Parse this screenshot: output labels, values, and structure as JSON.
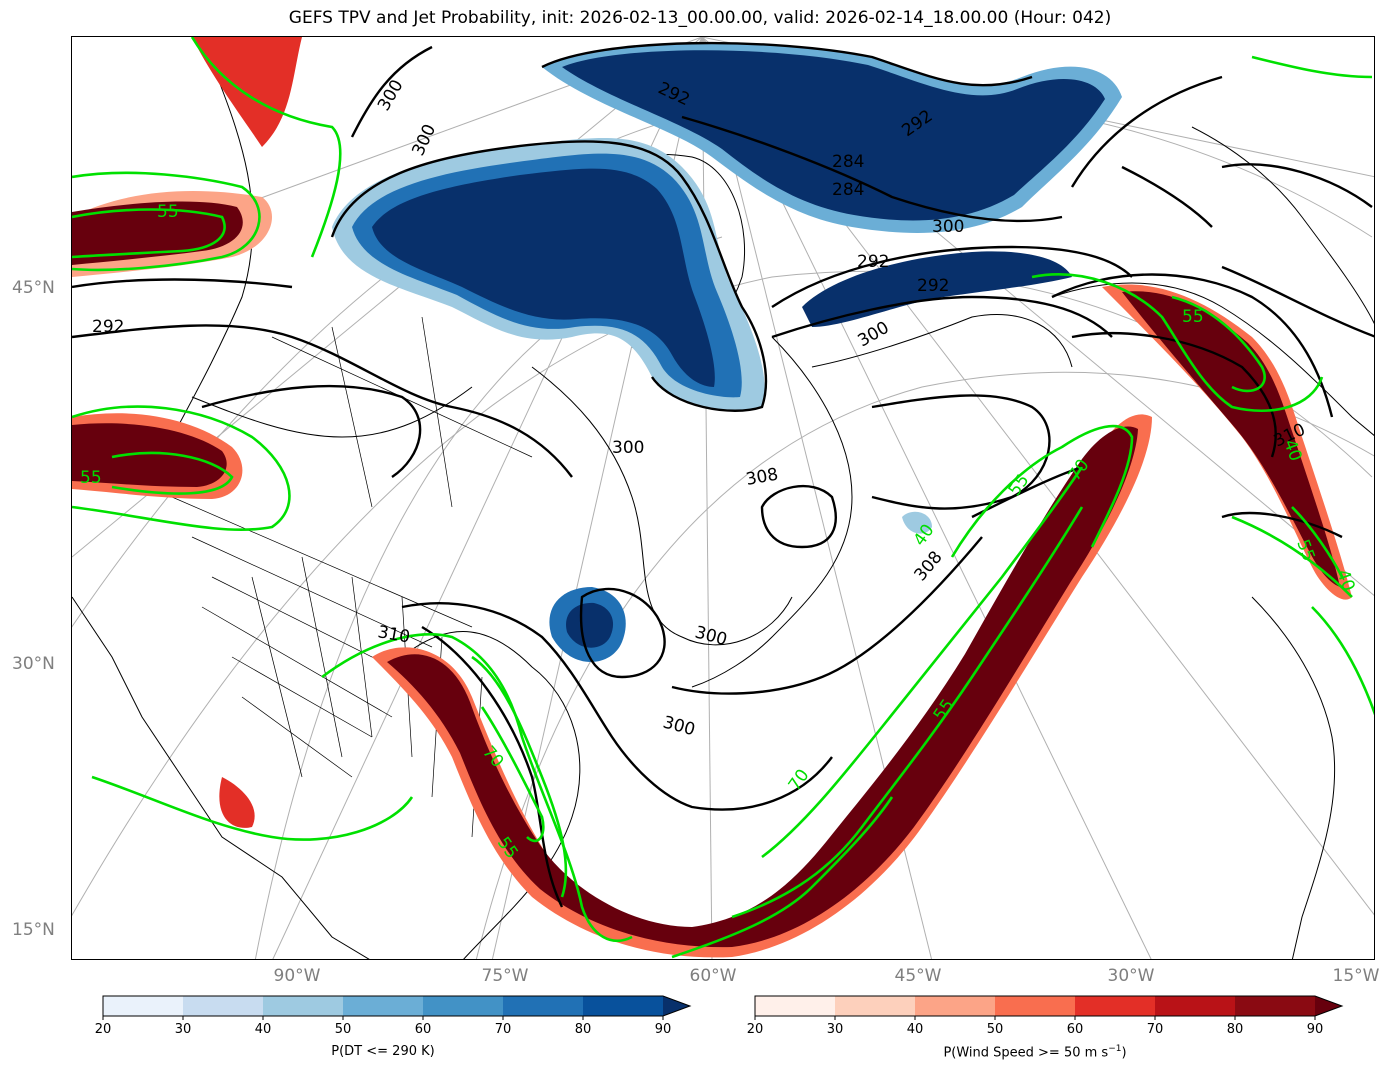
{
  "title": "GEFS TPV and Jet Probability, init: 2026-02-13_00.00.00, valid: 2026-02-14_18.00.00 (Hour: 042)",
  "lat_labels": [
    "45°N",
    "30°N",
    "15°N"
  ],
  "lon_labels": [
    "90°W",
    "75°W",
    "60°W",
    "45°W",
    "30°W",
    "15°W"
  ],
  "contour_labels": {
    "theta": [
      "292",
      "300",
      "284",
      "292",
      "292",
      "300",
      "284",
      "292",
      "300",
      "292",
      "300",
      "300",
      "308",
      "300",
      "300",
      "310",
      "308",
      "310"
    ],
    "wind": [
      "55",
      "55",
      "55",
      "40",
      "70",
      "55",
      "70",
      "55",
      "40",
      "55",
      "40",
      "55",
      "70"
    ]
  },
  "colorbars": [
    {
      "name": "P(DT <= 290 K)",
      "ticks": [
        "20",
        "30",
        "40",
        "50",
        "60",
        "70",
        "80",
        "90"
      ],
      "colors": [
        "#eaf2fb",
        "#c8dcf0",
        "#9ecae1",
        "#6baed6",
        "#4292c6",
        "#2171b5",
        "#08519c",
        "#08306b"
      ]
    },
    {
      "name_prefix": "P(Wind Speed >= 50 m s",
      "name_exp": "−1",
      "name_suffix": ")",
      "ticks": [
        "20",
        "30",
        "40",
        "50",
        "60",
        "70",
        "80",
        "90"
      ],
      "colors": [
        "#fff0ea",
        "#fdd0bc",
        "#fca487",
        "#f96e4f",
        "#e32f27",
        "#b91217",
        "#8a0a12",
        "#67000d"
      ]
    }
  ]
}
